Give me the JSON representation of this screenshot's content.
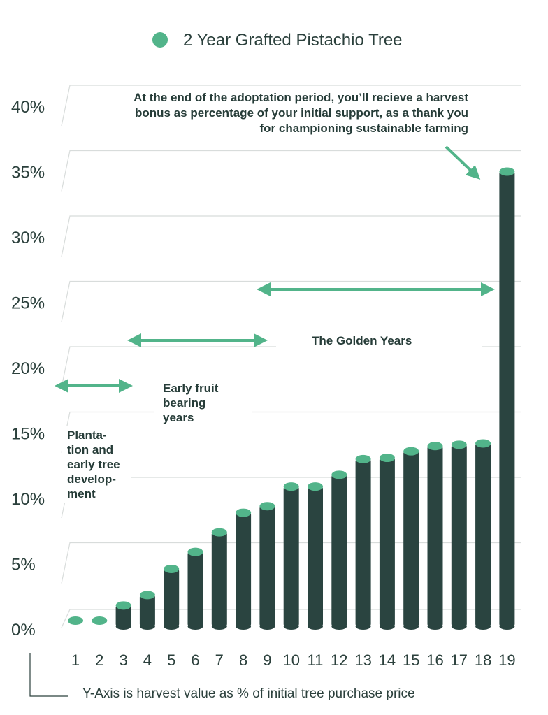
{
  "chart_data": {
    "type": "bar",
    "title": "",
    "xlabel": "",
    "ylabel": "",
    "note": "Y-Axis is harvest value as % of initial tree purchase price",
    "legend": {
      "label": "2 Year Grafted Pistachio Tree",
      "position": "top-center"
    },
    "categories": [
      "1",
      "2",
      "3",
      "4",
      "5",
      "6",
      "7",
      "8",
      "9",
      "10",
      "11",
      "12",
      "13",
      "14",
      "15",
      "16",
      "17",
      "18",
      "19"
    ],
    "series": [
      {
        "name": "2 Year Grafted Pistachio Tree",
        "values": [
          0,
          0,
          1.8,
          2.6,
          4.6,
          5.9,
          7.4,
          8.9,
          9.4,
          10.9,
          10.9,
          11.8,
          13.0,
          13.1,
          13.6,
          14.0,
          14.1,
          14.2,
          35.0
        ]
      }
    ],
    "yticks": [
      "0%",
      "5%",
      "10%",
      "15%",
      "20%",
      "25%",
      "30%",
      "35%",
      "40%"
    ],
    "ylim": [
      0,
      40
    ],
    "grid": true,
    "colors": {
      "bar": "#2a4440",
      "cap": "#52b48a",
      "arrow": "#52b48a",
      "grid": "#d8dcdb"
    },
    "annotations": {
      "bonus": [
        "At the end of the adoptation period, you’ll recieve a harvest",
        "bonus as percentage of your initial support, as a thank you",
        "for championing sustainable farming"
      ],
      "phase1": [
        "Planta-",
        "tion and",
        "early tree",
        "develop-",
        "ment"
      ],
      "phase2": [
        "Early fruit",
        "bearing",
        "years"
      ],
      "phase3": [
        "The Golden Years"
      ]
    }
  }
}
